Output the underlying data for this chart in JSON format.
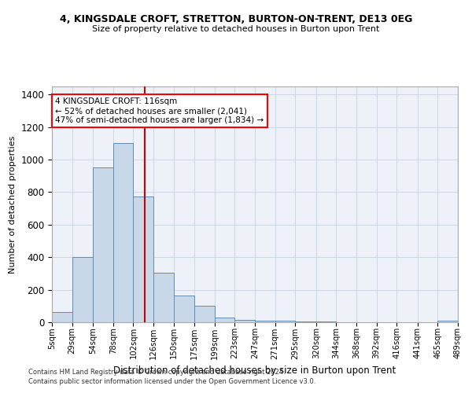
{
  "title_line1": "4, KINGSDALE CROFT, STRETTON, BURTON-ON-TRENT, DE13 0EG",
  "title_line2": "Size of property relative to detached houses in Burton upon Trent",
  "xlabel": "Distribution of detached houses by size in Burton upon Trent",
  "ylabel": "Number of detached properties",
  "footnote1": "Contains HM Land Registry data © Crown copyright and database right 2024.",
  "footnote2": "Contains public sector information licensed under the Open Government Licence v3.0.",
  "annotation_line1": "4 KINGSDALE CROFT: 116sqm",
  "annotation_line2": "← 52% of detached houses are smaller (2,041)",
  "annotation_line3": "47% of semi-detached houses are larger (1,834) →",
  "property_size": 116,
  "bar_color": "#c8d8e8",
  "bar_edge_color": "#5b8db8",
  "vline_color": "#cc0000",
  "grid_color": "#d0d8e8",
  "background_color": "#eef2f8",
  "bins": [
    5,
    29,
    54,
    78,
    102,
    126,
    150,
    175,
    199,
    223,
    247,
    271,
    295,
    320,
    344,
    368,
    392,
    416,
    441,
    465,
    489
  ],
  "bin_labels": [
    "5sqm",
    "29sqm",
    "54sqm",
    "78sqm",
    "102sqm",
    "126sqm",
    "150sqm",
    "175sqm",
    "199sqm",
    "223sqm",
    "247sqm",
    "271sqm",
    "295sqm",
    "320sqm",
    "344sqm",
    "368sqm",
    "392sqm",
    "416sqm",
    "441sqm",
    "465sqm",
    "489sqm"
  ],
  "values": [
    65,
    400,
    950,
    1100,
    775,
    305,
    165,
    100,
    30,
    15,
    10,
    10,
    5,
    5,
    0,
    0,
    0,
    0,
    0,
    10
  ],
  "ylim": [
    0,
    1450
  ],
  "yticks": [
    0,
    200,
    400,
    600,
    800,
    1000,
    1200,
    1400
  ]
}
